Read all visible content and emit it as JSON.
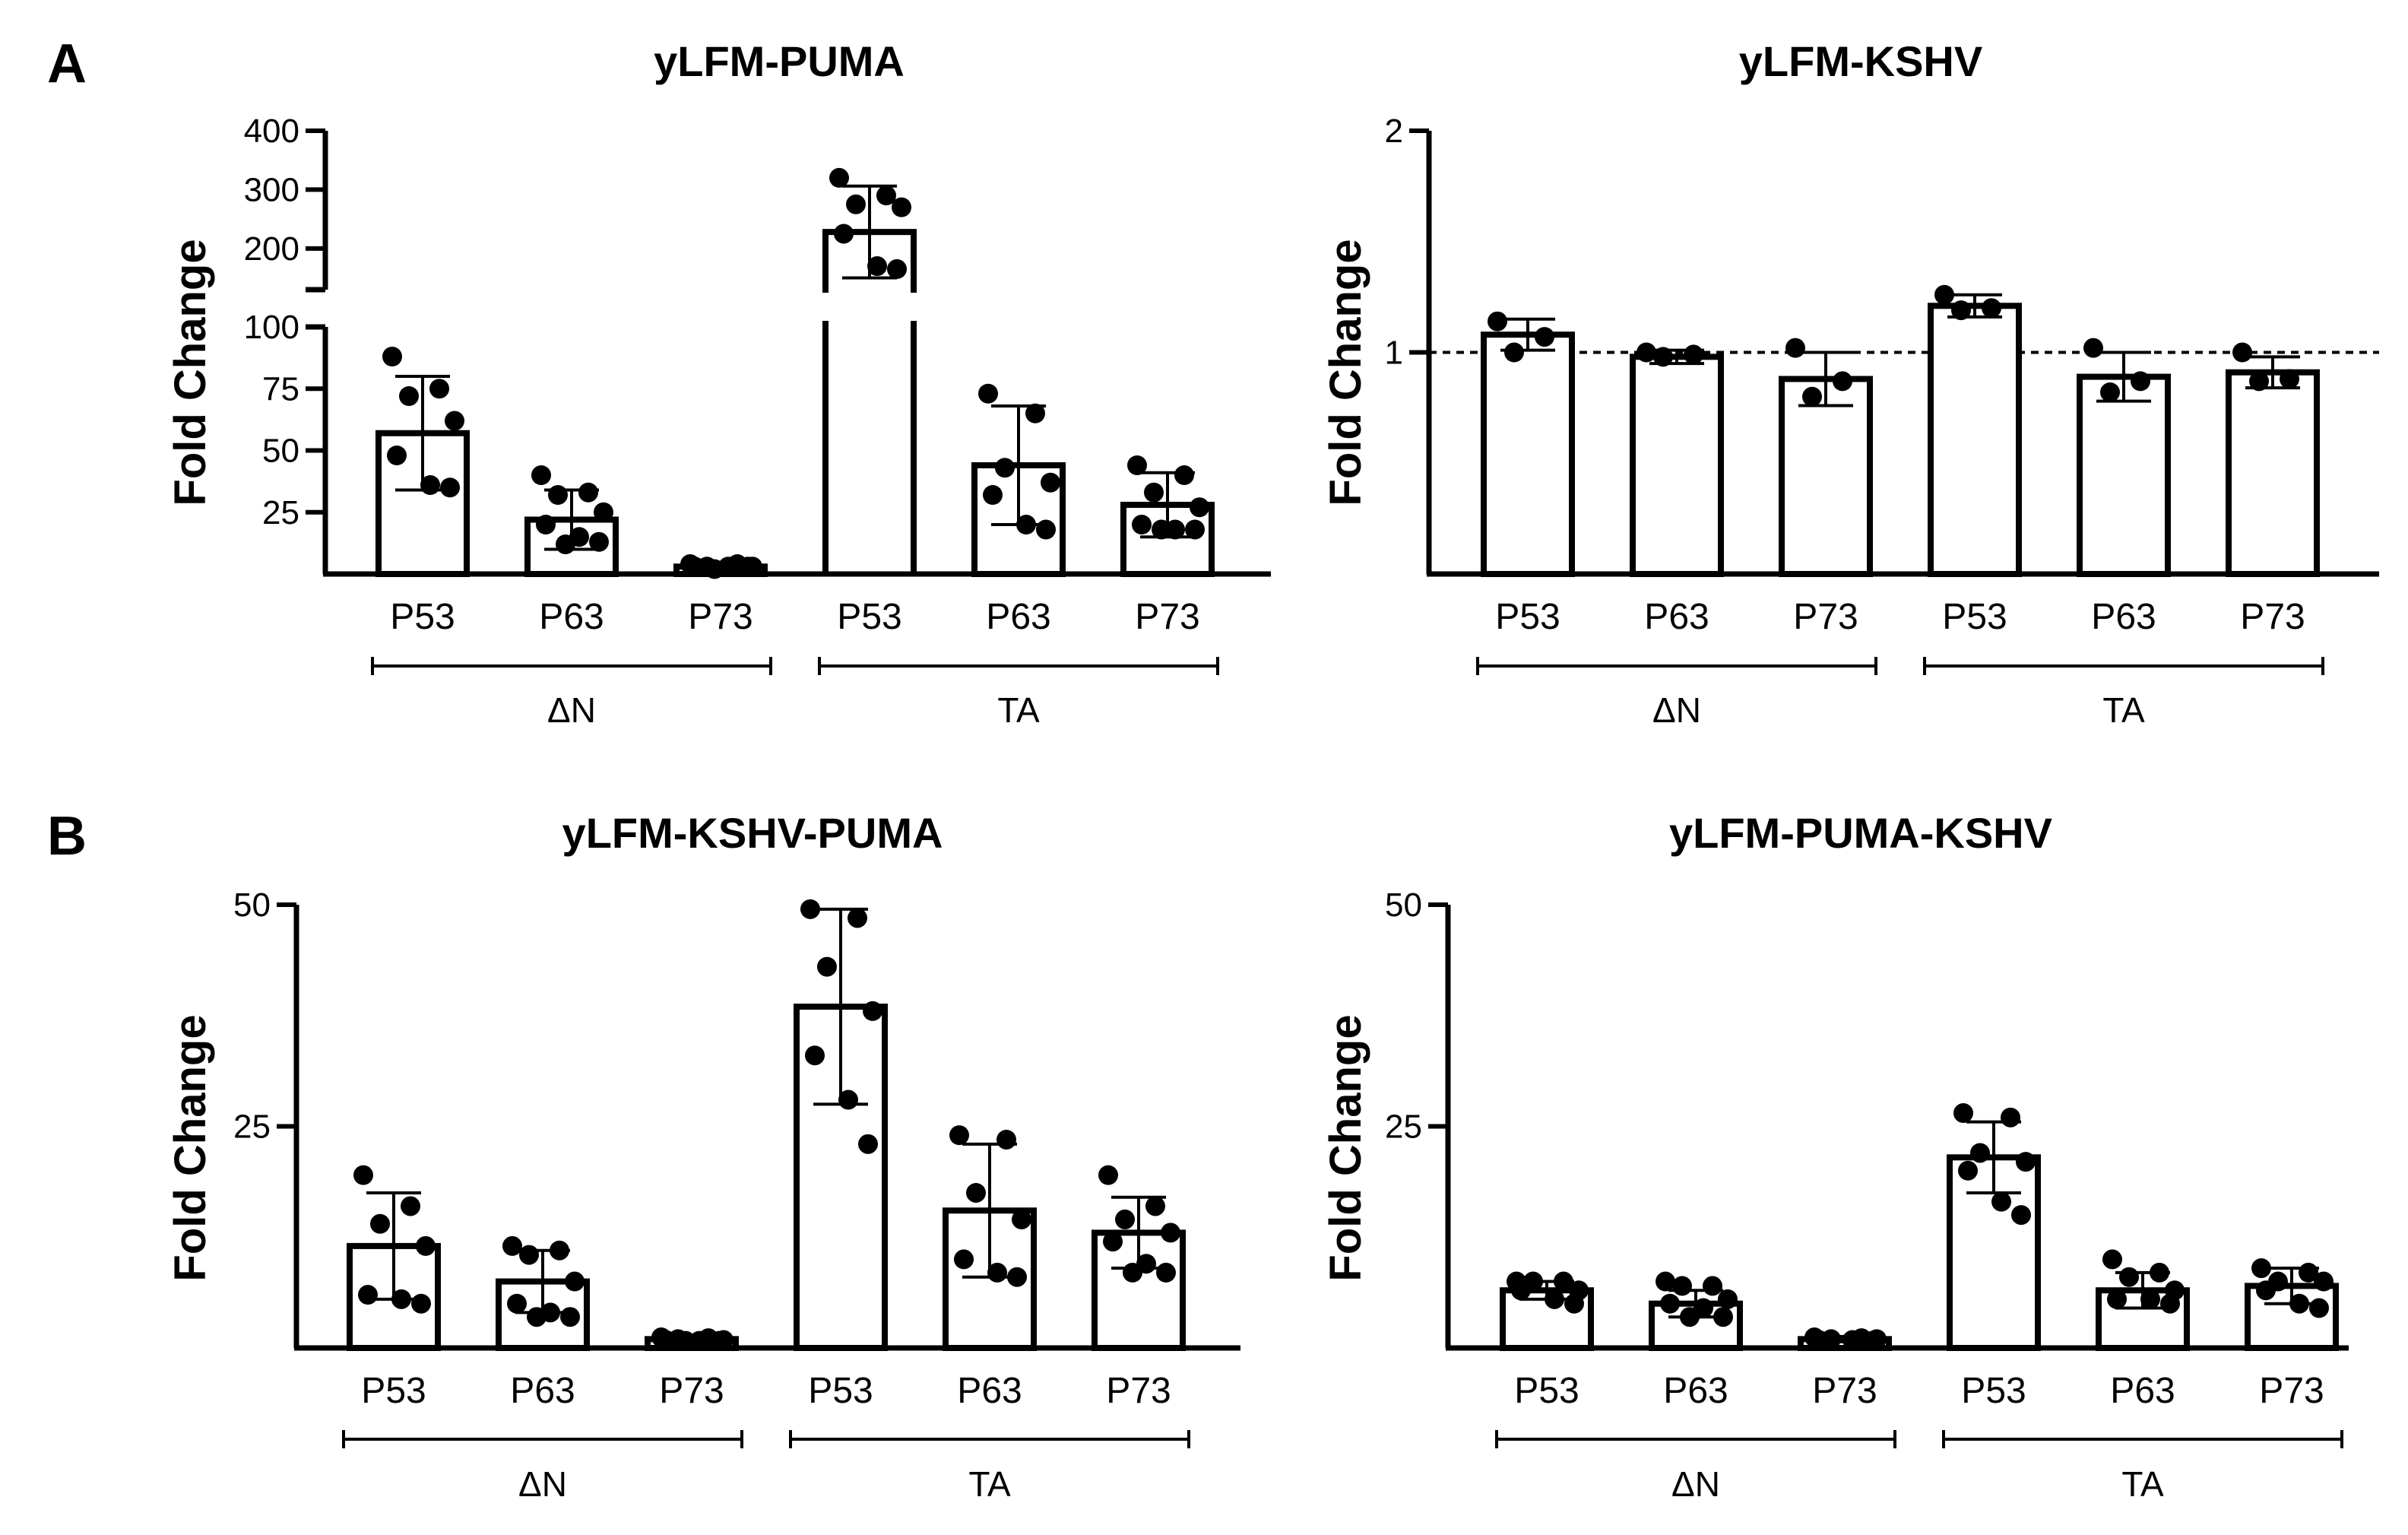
{
  "figure": {
    "panel_labels": [
      "A",
      "B"
    ]
  },
  "chart_data": [
    {
      "type": "bar",
      "panel": "A",
      "title": "yLFM-PUMA",
      "ylabel": "Fold Change",
      "xlabel": "",
      "categories": [
        "P53",
        "P63",
        "P73",
        "P53",
        "P63",
        "P73"
      ],
      "groups": [
        {
          "label": "ΔN",
          "from": 0,
          "to": 2
        },
        {
          "label": "TA",
          "from": 3,
          "to": 5
        }
      ],
      "axis_break": true,
      "lower_segment": {
        "ylim": [
          0,
          100
        ],
        "ticks": [
          25,
          50,
          75,
          100
        ],
        "tick_labels": [
          "25",
          "50",
          "75",
          "100"
        ]
      },
      "upper_segment": {
        "ylim": [
          130,
          400
        ],
        "ticks": [
          200,
          300,
          400
        ],
        "tick_labels": [
          "200",
          "300",
          "400"
        ]
      },
      "reference_line": null,
      "series": [
        {
          "name": "mean",
          "values": [
            57,
            22,
            3,
            228,
            44,
            28
          ]
        },
        {
          "name": "sd",
          "values": [
            23,
            12,
            1,
            78,
            24,
            13
          ]
        }
      ],
      "points": [
        [
          88,
          75,
          72,
          62,
          48,
          36,
          35
        ],
        [
          40,
          33,
          32,
          25,
          20,
          15,
          13,
          12
        ],
        [
          4,
          4,
          3,
          3,
          3,
          3,
          3,
          2
        ],
        [
          320,
          290,
          275,
          270,
          225,
          170,
          165
        ],
        [
          73,
          65,
          43,
          37,
          32,
          20,
          18
        ],
        [
          44,
          40,
          33,
          27,
          20,
          18,
          18,
          18
        ]
      ]
    },
    {
      "type": "bar",
      "panel": "A",
      "title": "yLFM-KSHV",
      "ylabel": "Fold Change",
      "xlabel": "",
      "categories": [
        "P53",
        "P63",
        "P73",
        "P53",
        "P63",
        "P73"
      ],
      "groups": [
        {
          "label": "ΔN",
          "from": 0,
          "to": 2
        },
        {
          "label": "TA",
          "from": 3,
          "to": 5
        }
      ],
      "ylim": [
        0,
        2
      ],
      "ticks": [
        1,
        2
      ],
      "tick_labels": [
        "1",
        "2"
      ],
      "reference_line": 1,
      "series": [
        {
          "name": "mean",
          "values": [
            1.08,
            0.98,
            0.88,
            1.21,
            0.89,
            0.91
          ]
        },
        {
          "name": "sd",
          "values": [
            0.07,
            0.03,
            0.12,
            0.05,
            0.11,
            0.07
          ]
        }
      ],
      "points": [
        [
          1.14,
          1.07,
          1.0
        ],
        [
          1.0,
          0.99,
          0.98
        ],
        [
          1.02,
          0.87,
          0.8
        ],
        [
          1.26,
          1.2,
          1.19
        ],
        [
          1.02,
          0.87,
          0.82
        ],
        [
          1.0,
          0.88,
          0.87
        ]
      ]
    },
    {
      "type": "bar",
      "panel": "B",
      "title": "yLFM-KSHV-PUMA",
      "ylabel": "Fold Change",
      "xlabel": "",
      "categories": [
        "P53",
        "P63",
        "P73",
        "P53",
        "P63",
        "P73"
      ],
      "groups": [
        {
          "label": "ΔN",
          "from": 0,
          "to": 2
        },
        {
          "label": "TA",
          "from": 3,
          "to": 5
        }
      ],
      "ylim": [
        0,
        50
      ],
      "ticks": [
        25,
        50
      ],
      "tick_labels": [
        "25",
        "50"
      ],
      "reference_line": null,
      "series": [
        {
          "name": "mean",
          "values": [
            11.5,
            7.5,
            1.0,
            38.5,
            15.5,
            13.0
          ]
        },
        {
          "name": "sd",
          "values": [
            6,
            3.5,
            0.3,
            11,
            7.5,
            4
          ]
        }
      ],
      "points": [
        [
          19.5,
          16,
          14,
          11.5,
          6,
          5.5,
          5
        ],
        [
          11.5,
          11,
          10.5,
          7.5,
          5,
          4,
          3.5,
          3.5
        ],
        [
          1.2,
          1.1,
          1.0,
          0.9,
          0.9,
          0.8,
          0.8,
          0.8
        ],
        [
          49.5,
          48.5,
          43,
          38,
          33,
          28,
          23
        ],
        [
          24,
          23.5,
          17.5,
          14.5,
          10,
          8.5,
          8
        ],
        [
          19.5,
          16,
          14.5,
          13,
          12,
          9.5,
          8.5,
          8.5
        ]
      ]
    },
    {
      "type": "bar",
      "panel": "B",
      "title": "yLFM-PUMA-KSHV",
      "ylabel": "Fold Change",
      "xlabel": "",
      "categories": [
        "P53",
        "P63",
        "P73",
        "P53",
        "P63",
        "P73"
      ],
      "groups": [
        {
          "label": "ΔN",
          "from": 0,
          "to": 2
        },
        {
          "label": "TA",
          "from": 3,
          "to": 5
        }
      ],
      "ylim": [
        0,
        50
      ],
      "ticks": [
        25,
        50
      ],
      "tick_labels": [
        "25",
        "50"
      ],
      "reference_line": null,
      "series": [
        {
          "name": "mean",
          "values": [
            6.5,
            5.0,
            1.0,
            21.5,
            6.5,
            7.0
          ]
        },
        {
          "name": "sd",
          "values": [
            1.0,
            1.5,
            0.3,
            4,
            2,
            2
          ]
        }
      ],
      "points": [
        [
          7.5,
          7.5,
          7.5,
          6.5,
          6.5,
          5.5,
          5
        ],
        [
          7.5,
          7,
          7,
          5.5,
          5,
          4.5,
          3.5,
          3.5
        ],
        [
          1.2,
          1.1,
          1.0,
          1.0,
          0.9,
          0.9,
          0.8
        ],
        [
          26.5,
          26,
          22,
          21,
          20,
          16.5,
          15
        ],
        [
          10,
          8.5,
          8,
          6.5,
          5.5,
          5.5,
          5
        ],
        [
          9,
          8.5,
          7.5,
          7.5,
          6.5,
          5,
          4.5
        ]
      ]
    }
  ]
}
